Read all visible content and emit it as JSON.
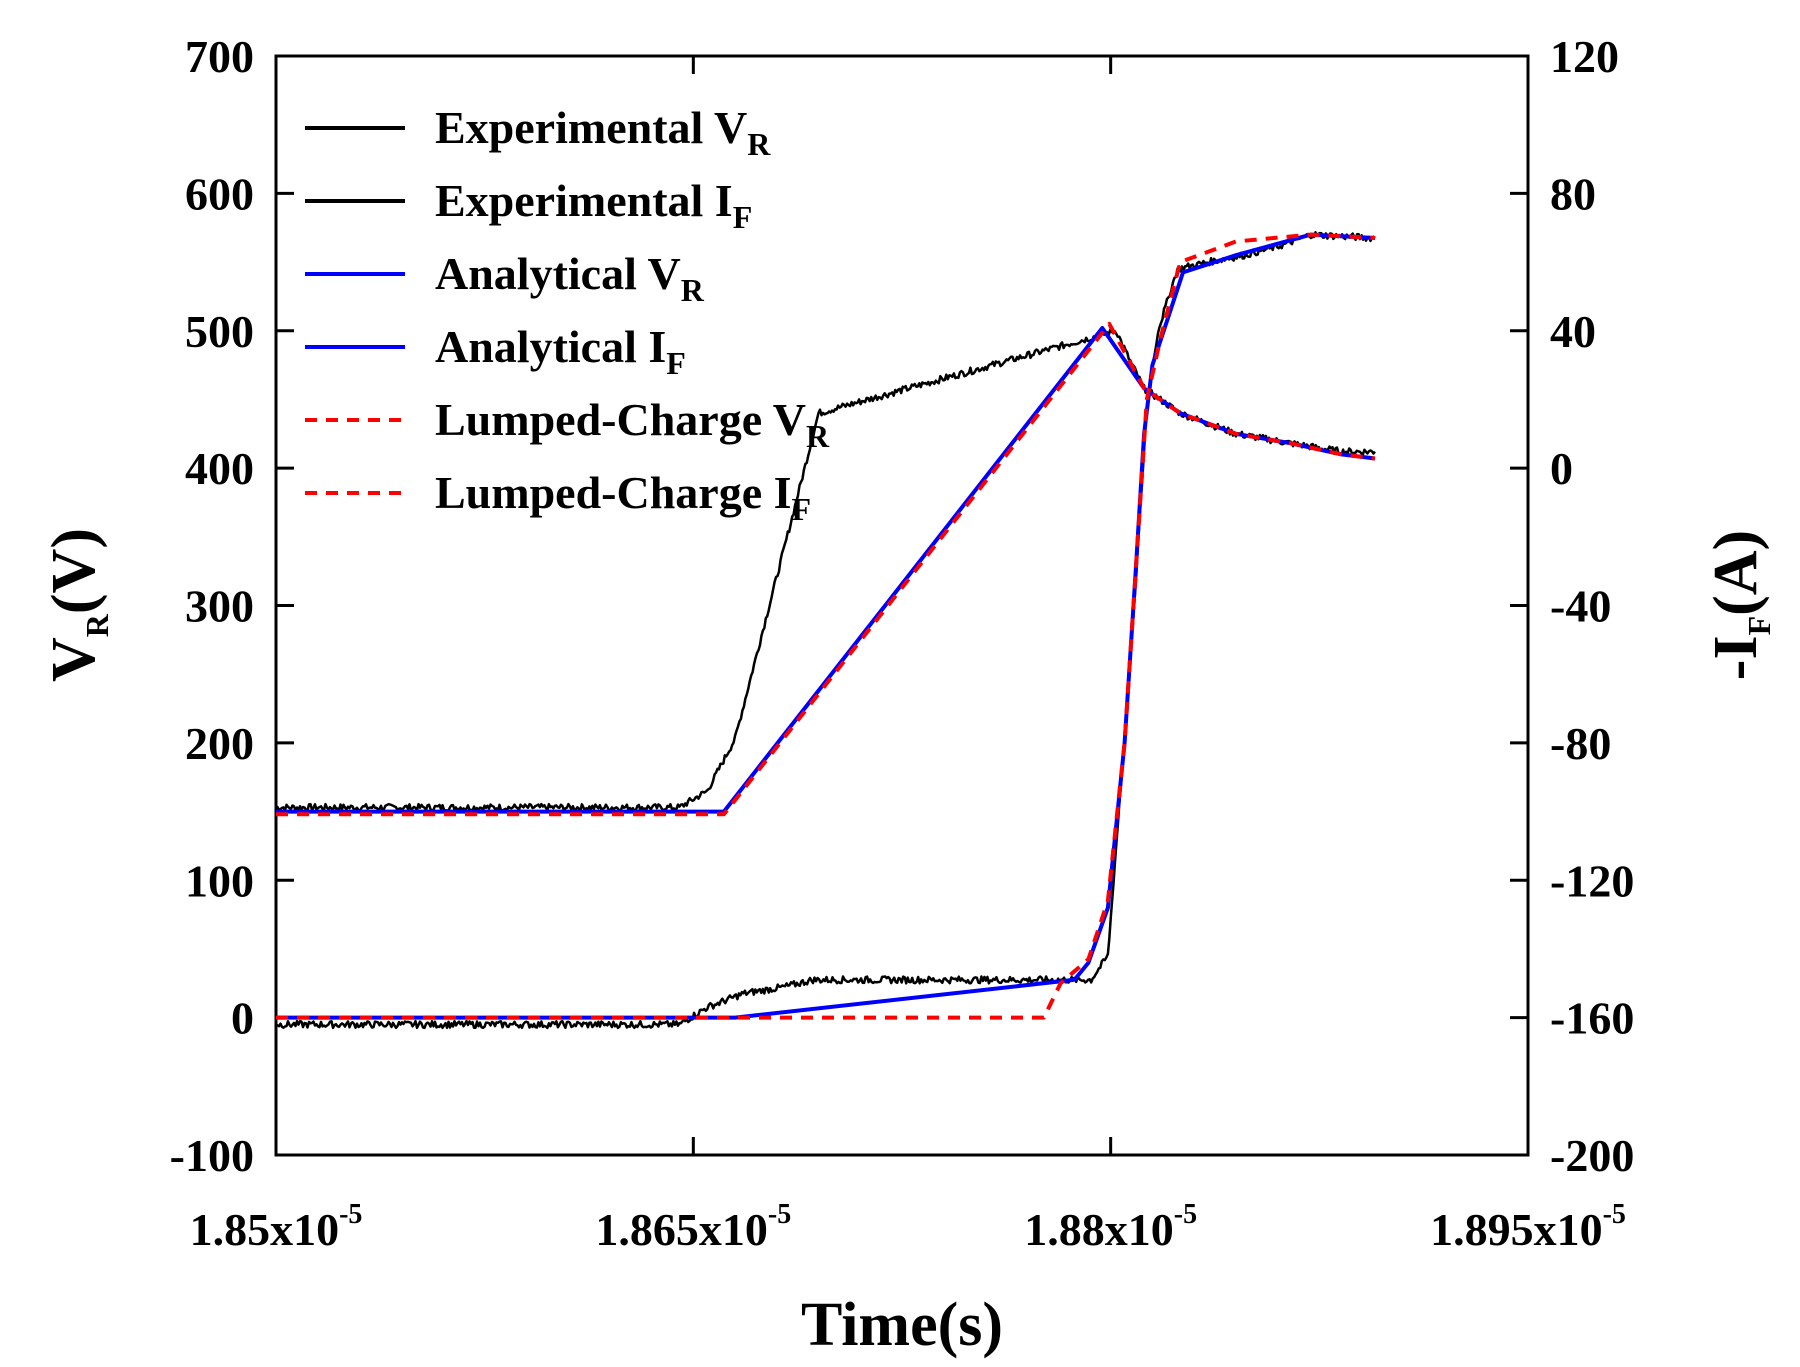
{
  "chart_data": {
    "type": "line",
    "x_axis": {
      "label": "Time(s)",
      "range": [
        1.85e-05,
        1.895e-05
      ],
      "ticks": [
        {
          "value": 1.85e-05,
          "mantissa": "1.85x10",
          "exponent": "-5"
        },
        {
          "value": 1.865e-05,
          "mantissa": "1.865x10",
          "exponent": "-5"
        },
        {
          "value": 1.88e-05,
          "mantissa": "1.88x10",
          "exponent": "-5"
        },
        {
          "value": 1.895e-05,
          "mantissa": "1.895x10",
          "exponent": "-5"
        }
      ]
    },
    "y_left": {
      "label_main": "V",
      "label_sub": "R",
      "label_tail": "(V)",
      "range": [
        -100,
        700
      ],
      "ticks": [
        -100,
        0,
        100,
        200,
        300,
        400,
        500,
        600,
        700
      ]
    },
    "y_right": {
      "label_main": "-I",
      "label_sub": "F",
      "label_tail": "(A)",
      "range": [
        -200,
        120
      ],
      "ticks": [
        -200,
        -160,
        -120,
        -80,
        -40,
        0,
        40,
        80,
        120
      ]
    },
    "series": [
      {
        "name": "Experimental V_R",
        "label_main": "Experimental V",
        "label_sub": "R",
        "axis": "left",
        "color": "#000000",
        "dash": "solid",
        "noise": true,
        "points": [
          [
            1.85e-05,
            153
          ],
          [
            1.8645e-05,
            153
          ],
          [
            1.8655e-05,
            165
          ],
          [
            1.8665e-05,
            203
          ],
          [
            1.8675e-05,
            282
          ],
          [
            1.8685e-05,
            360
          ],
          [
            1.8695e-05,
            440
          ],
          [
            1.8802e-05,
            500
          ],
          [
            1.88065e-05,
            480
          ],
          [
            1.8812e-05,
            458
          ],
          [
            1.8825e-05,
            440
          ],
          [
            1.8845e-05,
            425
          ],
          [
            1.8865e-05,
            418
          ],
          [
            1.8883e-05,
            412
          ],
          [
            1.8895e-05,
            412
          ]
        ]
      },
      {
        "name": "Experimental I_F",
        "label_main": "Experimental  I",
        "label_sub": "F",
        "axis": "right",
        "color": "#000000",
        "dash": "solid",
        "noise": true,
        "points": [
          [
            1.85e-05,
            -162
          ],
          [
            1.8645e-05,
            -162
          ],
          [
            1.8655e-05,
            -157
          ],
          [
            1.8668e-05,
            -153
          ],
          [
            1.8683e-05,
            -151
          ],
          [
            1.8693e-05,
            -149
          ],
          [
            1.8793e-05,
            -149
          ],
          [
            1.8799e-05,
            -142
          ],
          [
            1.8802e-05,
            -110
          ],
          [
            1.88085e-05,
            -40
          ],
          [
            1.8813e-05,
            18
          ],
          [
            1.8817e-05,
            40
          ],
          [
            1.8824e-05,
            58
          ],
          [
            1.8835e-05,
            60
          ],
          [
            1.8848e-05,
            62
          ],
          [
            1.8862e-05,
            65
          ],
          [
            1.8872e-05,
            68
          ],
          [
            1.8895e-05,
            67
          ]
        ]
      },
      {
        "name": "Analytical V_R",
        "label_main": "Analytical V",
        "label_sub": "R",
        "axis": "left",
        "color": "#0000ff",
        "dash": "solid",
        "noise": false,
        "points": [
          [
            1.85e-05,
            150
          ],
          [
            1.8661e-05,
            150
          ],
          [
            1.8797e-05,
            502
          ],
          [
            1.8812e-05,
            458
          ],
          [
            1.8825e-05,
            440
          ],
          [
            1.8845e-05,
            425
          ],
          [
            1.8865e-05,
            418
          ],
          [
            1.8883e-05,
            410
          ],
          [
            1.8895e-05,
            407
          ]
        ]
      },
      {
        "name": "Analytical I_F",
        "label_main": "Analytical I",
        "label_sub": "F",
        "axis": "right",
        "color": "#0000ff",
        "dash": "solid",
        "noise": false,
        "points": [
          [
            1.85e-05,
            -160
          ],
          [
            1.8665e-05,
            -160
          ],
          [
            1.8787e-05,
            -149
          ],
          [
            1.8792e-05,
            -144
          ],
          [
            1.8799e-05,
            -128
          ],
          [
            1.8805e-05,
            -80
          ],
          [
            1.8809e-05,
            -30
          ],
          [
            1.8812e-05,
            10
          ],
          [
            1.8815e-05,
            30
          ],
          [
            1.8826e-05,
            57
          ],
          [
            1.8845e-05,
            62
          ],
          [
            1.8872e-05,
            68
          ],
          [
            1.8895e-05,
            67
          ]
        ]
      },
      {
        "name": "Lumped-Charge V_R",
        "label_main": "Lumped-Charge V",
        "label_sub": "R",
        "axis": "left",
        "color": "#ff0000",
        "dash": "dashed",
        "noise": false,
        "points": [
          [
            1.85e-05,
            148
          ],
          [
            1.8661e-05,
            148
          ],
          [
            1.87995e-05,
            505
          ],
          [
            1.8812e-05,
            458
          ],
          [
            1.8825e-05,
            440
          ],
          [
            1.8845e-05,
            425
          ],
          [
            1.8865e-05,
            418
          ],
          [
            1.8883e-05,
            410
          ],
          [
            1.8895e-05,
            407
          ]
        ]
      },
      {
        "name": "Lumped-Charge I_F",
        "label_main": "Lumped-Charge I",
        "label_sub": "F",
        "axis": "right",
        "color": "#ff0000",
        "dash": "dashed",
        "noise": false,
        "points": [
          [
            1.85e-05,
            -160
          ],
          [
            1.8776e-05,
            -160
          ],
          [
            1.8782e-05,
            -150
          ],
          [
            1.8792e-05,
            -143
          ],
          [
            1.8799e-05,
            -126
          ],
          [
            1.8805e-05,
            -80
          ],
          [
            1.8809e-05,
            -30
          ],
          [
            1.8813e-05,
            20
          ],
          [
            1.8818e-05,
            38
          ],
          [
            1.8825e-05,
            60
          ],
          [
            1.8845e-05,
            66
          ],
          [
            1.8872e-05,
            68
          ],
          [
            1.8895e-05,
            67
          ]
        ]
      }
    ]
  }
}
